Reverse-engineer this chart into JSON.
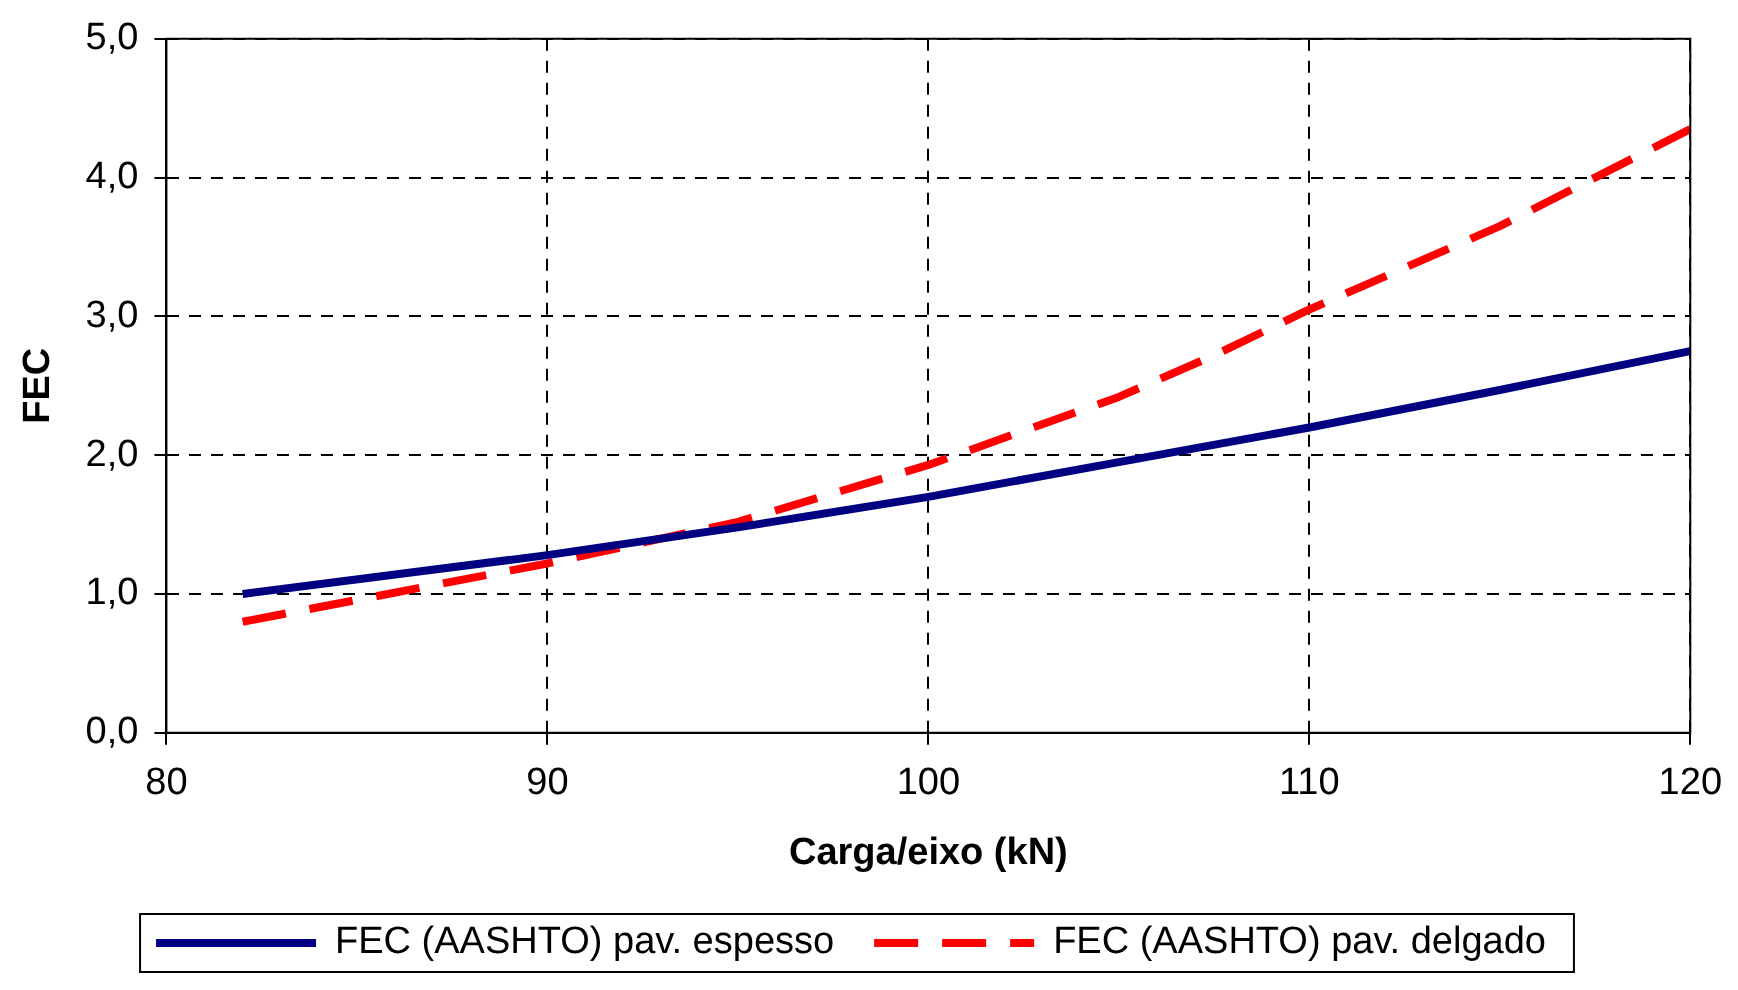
{
  "chart_data": {
    "type": "line",
    "xlabel": "Carga/eixo (kN)",
    "ylabel": "FEC",
    "series": [
      {
        "name": "FEC (AASHTO) pav. espesso",
        "color": "#000080",
        "line_style": "solid",
        "x": [
          82,
          90,
          95,
          100,
          105,
          110,
          115,
          120
        ],
        "values": [
          1.0,
          1.28,
          1.48,
          1.7,
          1.95,
          2.2,
          2.47,
          2.75
        ]
      },
      {
        "name": "FEC (AASHTO) pav. delgado",
        "color": "#ff0000",
        "line_style": "dashed",
        "x": [
          82,
          90,
          95,
          100,
          105,
          107.5,
          110,
          115,
          120
        ],
        "values": [
          0.8,
          1.22,
          1.52,
          1.93,
          2.42,
          2.72,
          3.05,
          3.65,
          4.35
        ]
      }
    ],
    "xlim": [
      80,
      120
    ],
    "xticks": [
      80,
      90,
      100,
      110,
      120
    ],
    "ylim": [
      0,
      5
    ],
    "yticks": [
      {
        "value": 0,
        "label": "0,0"
      },
      {
        "value": 1,
        "label": "1,0"
      },
      {
        "value": 2,
        "label": "2,0"
      },
      {
        "value": 3,
        "label": "3,0"
      },
      {
        "value": 4,
        "label": "4,0"
      },
      {
        "value": 5,
        "label": "5,0"
      }
    ],
    "grid": true,
    "legend": "bottom",
    "marker": "none"
  }
}
